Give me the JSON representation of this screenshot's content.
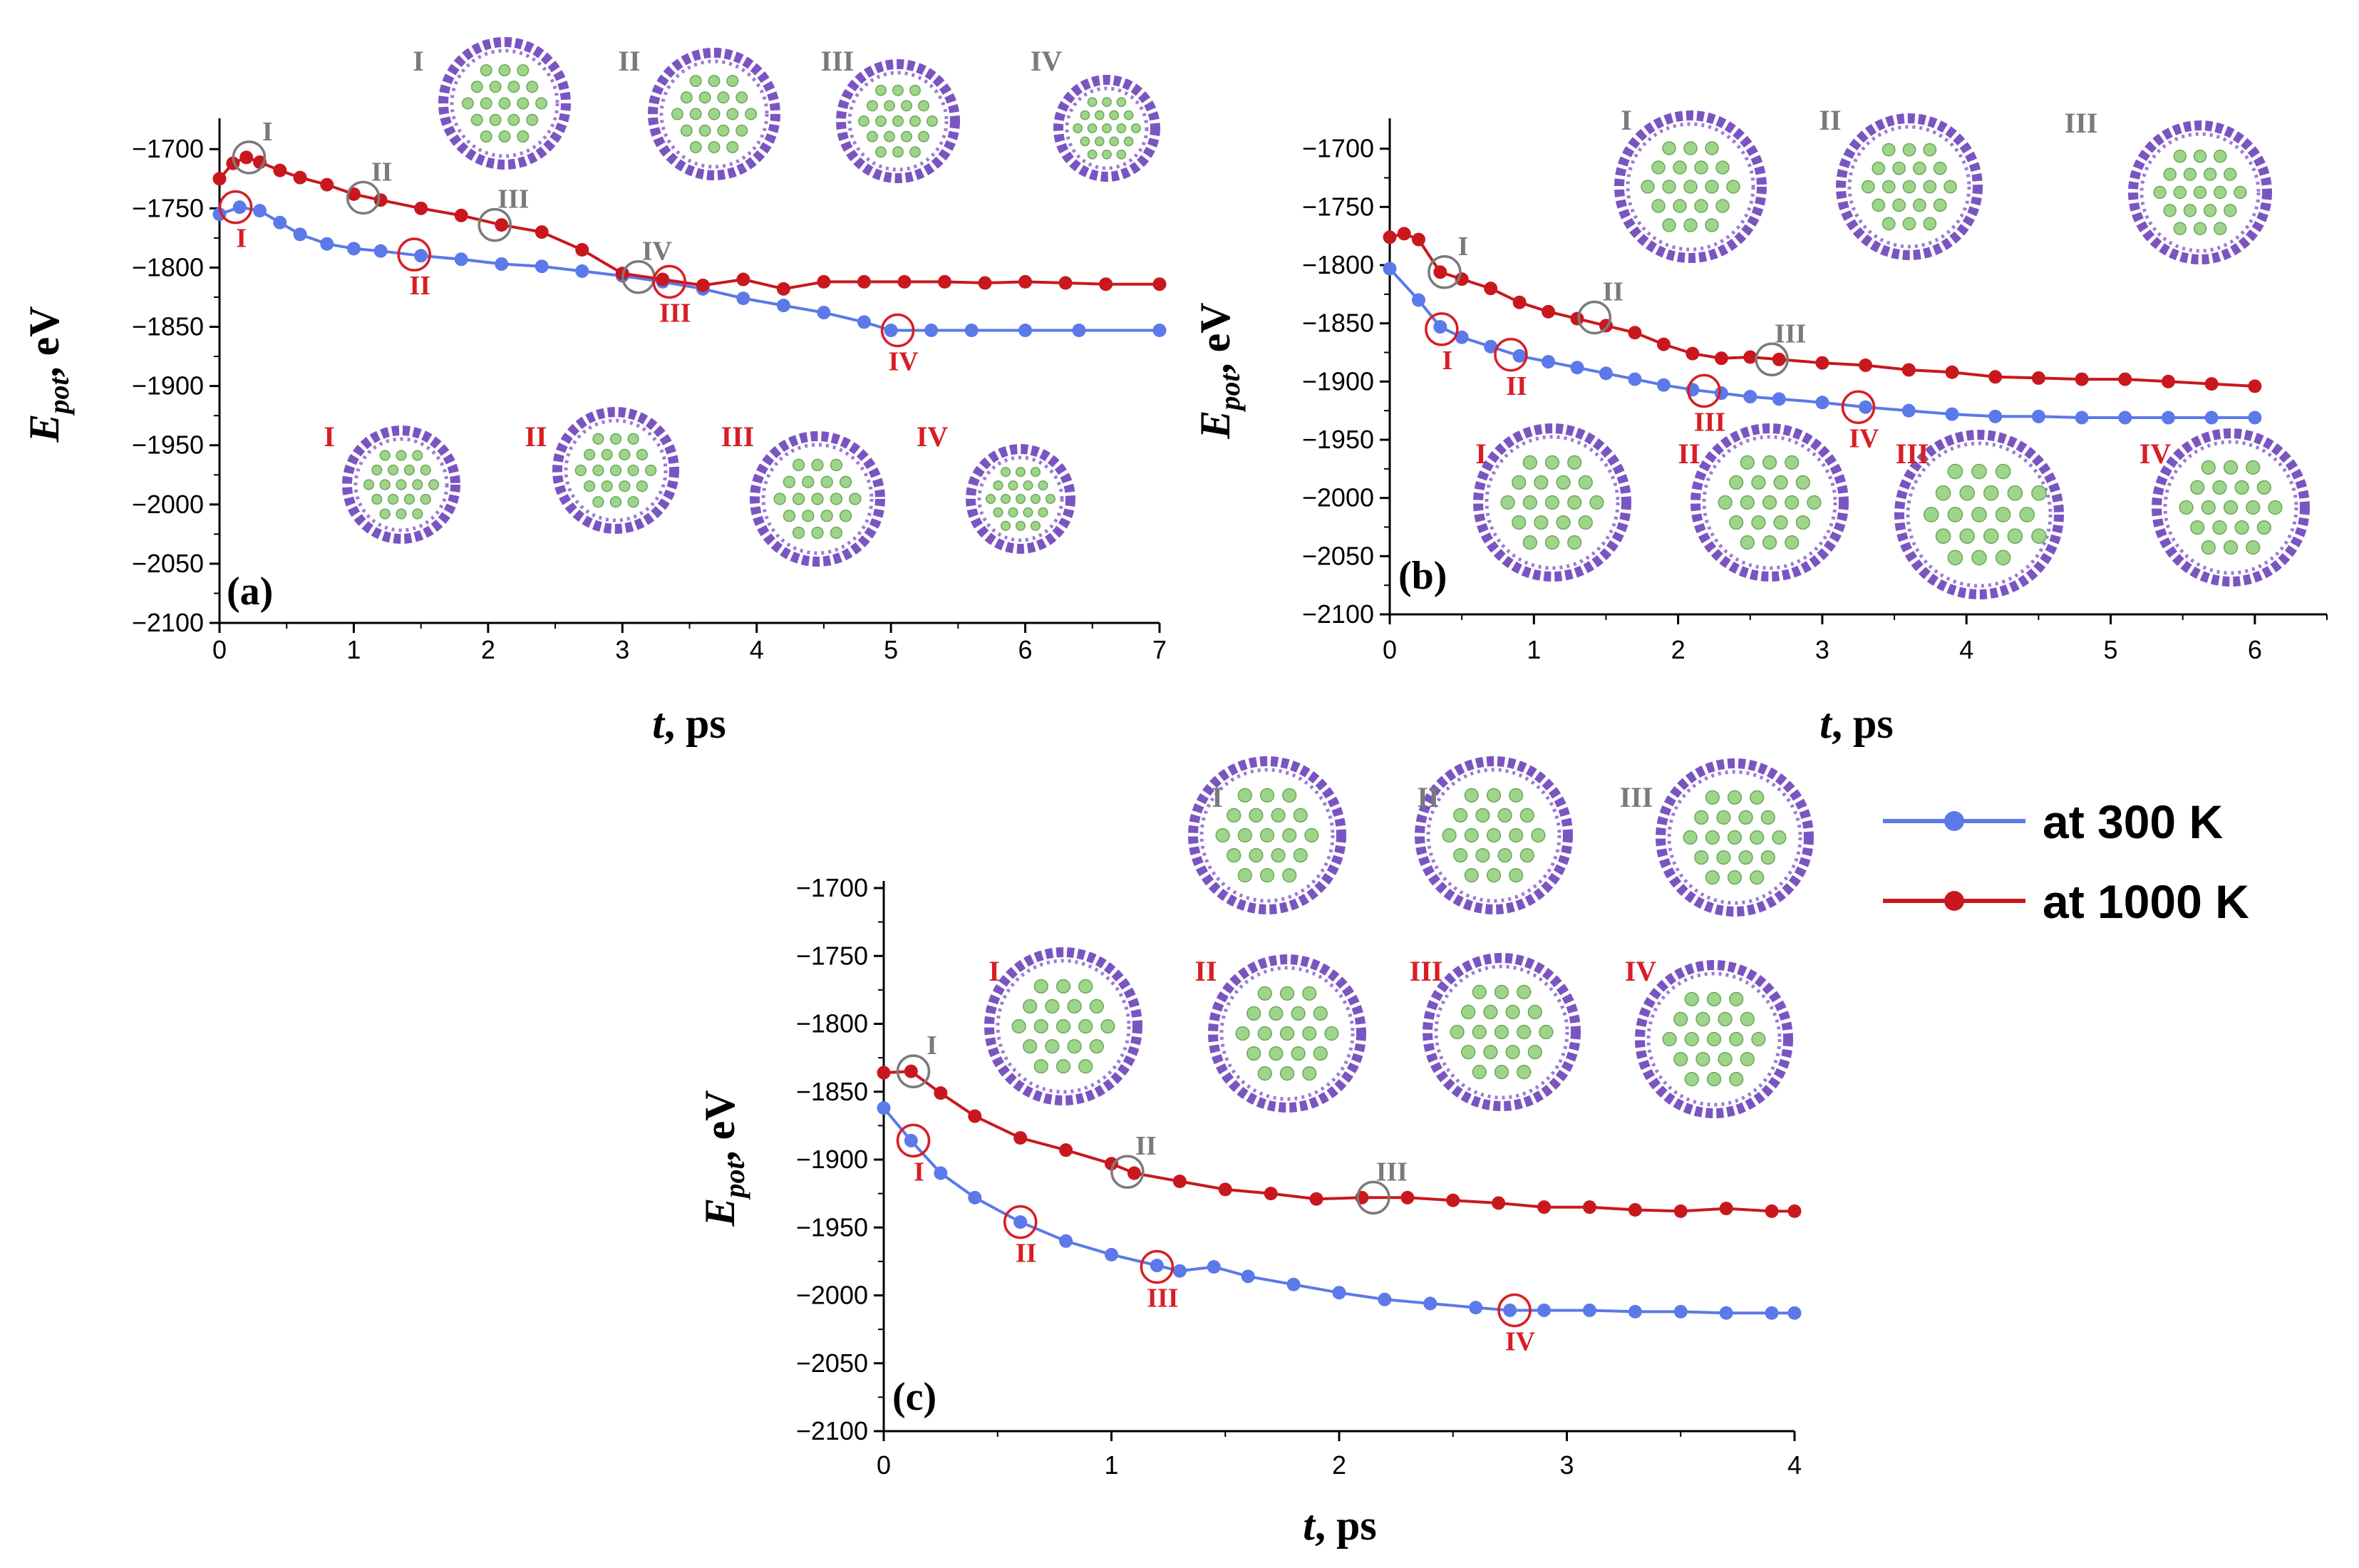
{
  "colors": {
    "series_300": "#5b79e8",
    "series_1000": "#c8181e",
    "marker_gray": "#7a7a7a",
    "marker_red": "#d81e24",
    "tube": "#7a55c2",
    "sodium": "#9ed58a"
  },
  "legend": {
    "items": [
      {
        "label": "at 300 K",
        "color": "#5b79e8"
      },
      {
        "label": "at 1000 K",
        "color": "#c8181e"
      }
    ]
  },
  "chart_data": [
    {
      "type": "line",
      "panel_label": "(a)",
      "xlabel_italic": "t",
      "xlabel_rest": ", ps",
      "ylabel_main": "E",
      "ylabel_sub": "pot",
      "ylabel_rest": ", eV",
      "xlim": [
        0,
        7
      ],
      "ylim": [
        -2100,
        -1680
      ],
      "xticks": [
        "0",
        "1",
        "2",
        "3",
        "4",
        "5",
        "6",
        "7"
      ],
      "yticks": [
        "-1700",
        "-1750",
        "-1800",
        "-1850",
        "-1900",
        "-1950",
        "-2000",
        "-2050",
        "-2100"
      ],
      "series": [
        {
          "key": "300K",
          "color": "#5b79e8",
          "x": [
            0,
            0.15,
            0.3,
            0.45,
            0.6,
            0.8,
            1.0,
            1.2,
            1.5,
            1.8,
            2.1,
            2.4,
            2.7,
            3.0,
            3.3,
            3.6,
            3.9,
            4.2,
            4.5,
            4.8,
            5.0,
            5.3,
            5.6,
            6.0,
            6.4,
            7.0
          ],
          "y": [
            -1755,
            -1749,
            -1752,
            -1762,
            -1772,
            -1780,
            -1784,
            -1786,
            -1790,
            -1793,
            -1797,
            -1799,
            -1803,
            -1807,
            -1812,
            -1818,
            -1826,
            -1832,
            -1838,
            -1846,
            -1853,
            -1853,
            -1853,
            -1853,
            -1853,
            -1853
          ]
        },
        {
          "key": "1000K",
          "color": "#c8181e",
          "x": [
            0,
            0.1,
            0.2,
            0.3,
            0.45,
            0.6,
            0.8,
            1.0,
            1.2,
            1.5,
            1.8,
            2.1,
            2.4,
            2.7,
            3.0,
            3.3,
            3.6,
            3.9,
            4.2,
            4.5,
            4.8,
            5.1,
            5.4,
            5.7,
            6.0,
            6.3,
            6.6,
            7.0
          ],
          "y": [
            -1725,
            -1712,
            -1707,
            -1711,
            -1718,
            -1724,
            -1730,
            -1738,
            -1743,
            -1750,
            -1756,
            -1764,
            -1770,
            -1785,
            -1805,
            -1810,
            -1815,
            -1810,
            -1818,
            -1812,
            -1812,
            -1812,
            -1812,
            -1813,
            -1812,
            -1813,
            -1814,
            -1814
          ]
        }
      ],
      "markers": [
        {
          "label": "I",
          "tone": "gray",
          "x": 0.22,
          "y": -1707
        },
        {
          "label": "II",
          "tone": "gray",
          "x": 1.07,
          "y": -1741
        },
        {
          "label": "III",
          "tone": "gray",
          "x": 2.05,
          "y": -1764
        },
        {
          "label": "IV",
          "tone": "gray",
          "x": 3.12,
          "y": -1808
        },
        {
          "label": "I",
          "tone": "red",
          "x": 0.12,
          "y": -1749
        },
        {
          "label": "II",
          "tone": "red",
          "x": 1.45,
          "y": -1789
        },
        {
          "label": "III",
          "tone": "red",
          "x": 3.35,
          "y": -1812
        },
        {
          "label": "IV",
          "tone": "red",
          "x": 5.05,
          "y": -1853
        }
      ],
      "snapshots": {
        "top": [
          "I",
          "II",
          "III",
          "IV"
        ],
        "bottom": [
          "I",
          "II",
          "III",
          "IV"
        ]
      }
    },
    {
      "type": "line",
      "panel_label": "(b)",
      "xlabel_italic": "t",
      "xlabel_rest": ", ps",
      "ylabel_main": "E",
      "ylabel_sub": "pot",
      "ylabel_rest": ", eV",
      "xlim": [
        0,
        6.5
      ],
      "ylim": [
        -2100,
        -1680
      ],
      "xticks": [
        "0",
        "1",
        "2",
        "3",
        "4",
        "5",
        "6"
      ],
      "yticks": [
        "-1700",
        "-1750",
        "-1800",
        "-1850",
        "-1900",
        "-1950",
        "-2000",
        "-2050",
        "-2100"
      ],
      "series": [
        {
          "key": "300K",
          "color": "#5b79e8",
          "x": [
            0,
            0.2,
            0.35,
            0.5,
            0.7,
            0.9,
            1.1,
            1.3,
            1.5,
            1.7,
            1.9,
            2.1,
            2.3,
            2.5,
            2.7,
            3.0,
            3.3,
            3.6,
            3.9,
            4.2,
            4.5,
            4.8,
            5.1,
            5.4,
            5.7,
            6.0
          ],
          "y": [
            -1803,
            -1830,
            -1853,
            -1862,
            -1870,
            -1878,
            -1883,
            -1888,
            -1893,
            -1898,
            -1903,
            -1907,
            -1910,
            -1913,
            -1915,
            -1918,
            -1922,
            -1925,
            -1928,
            -1930,
            -1930,
            -1931,
            -1931,
            -1931,
            -1931,
            -1931
          ]
        },
        {
          "key": "1000K",
          "color": "#c8181e",
          "x": [
            0,
            0.1,
            0.2,
            0.35,
            0.5,
            0.7,
            0.9,
            1.1,
            1.3,
            1.5,
            1.7,
            1.9,
            2.1,
            2.3,
            2.5,
            2.7,
            3.0,
            3.3,
            3.6,
            3.9,
            4.2,
            4.5,
            4.8,
            5.1,
            5.4,
            5.7,
            6.0
          ],
          "y": [
            -1776,
            -1773,
            -1778,
            -1806,
            -1812,
            -1820,
            -1832,
            -1840,
            -1846,
            -1852,
            -1858,
            -1868,
            -1876,
            -1880,
            -1879,
            -1881,
            -1884,
            -1886,
            -1890,
            -1892,
            -1896,
            -1897,
            -1898,
            -1898,
            -1900,
            -1902,
            -1904
          ]
        }
      ],
      "markers": [
        {
          "label": "I",
          "tone": "gray",
          "x": 0.38,
          "y": -1806
        },
        {
          "label": "II",
          "tone": "gray",
          "x": 1.42,
          "y": -1845
        },
        {
          "label": "III",
          "tone": "gray",
          "x": 2.65,
          "y": -1881
        },
        {
          "label": "I",
          "tone": "red",
          "x": 0.36,
          "y": -1855
        },
        {
          "label": "II",
          "tone": "red",
          "x": 0.84,
          "y": -1877
        },
        {
          "label": "III",
          "tone": "red",
          "x": 2.18,
          "y": -1908
        },
        {
          "label": "IV",
          "tone": "red",
          "x": 3.25,
          "y": -1922
        }
      ],
      "snapshots": {
        "top": [
          "I",
          "II",
          "III"
        ],
        "bottom": [
          "I",
          "II",
          "III",
          "IV"
        ]
      }
    },
    {
      "type": "line",
      "panel_label": "(c)",
      "xlabel_italic": "t",
      "xlabel_rest": ", ps",
      "ylabel_main": "E",
      "ylabel_sub": "pot",
      "ylabel_rest": ", eV",
      "xlim": [
        0,
        4
      ],
      "ylim": [
        -2100,
        -1700
      ],
      "xticks": [
        "0",
        "1",
        "2",
        "3",
        "4"
      ],
      "yticks": [
        "-1700",
        "-1750",
        "-1800",
        "-1850",
        "-1900",
        "-1950",
        "-2000",
        "-2050",
        "-2100"
      ],
      "series": [
        {
          "key": "300K",
          "color": "#5b79e8",
          "x": [
            0,
            0.12,
            0.25,
            0.4,
            0.6,
            0.8,
            1.0,
            1.2,
            1.3,
            1.45,
            1.6,
            1.8,
            2.0,
            2.2,
            2.4,
            2.6,
            2.75,
            2.9,
            3.1,
            3.3,
            3.5,
            3.7,
            3.9,
            4.0
          ],
          "y": [
            -1862,
            -1886,
            -1910,
            -1928,
            -1946,
            -1960,
            -1970,
            -1978,
            -1982,
            -1979,
            -1986,
            -1992,
            -1998,
            -2003,
            -2006,
            -2009,
            -2011,
            -2011,
            -2011,
            -2012,
            -2012,
            -2013,
            -2013,
            -2013
          ]
        },
        {
          "key": "1000K",
          "color": "#c8181e",
          "x": [
            0,
            0.12,
            0.25,
            0.4,
            0.6,
            0.8,
            1.0,
            1.1,
            1.3,
            1.5,
            1.7,
            1.9,
            2.1,
            2.3,
            2.5,
            2.7,
            2.9,
            3.1,
            3.3,
            3.5,
            3.7,
            3.9,
            4.0
          ],
          "y": [
            -1836,
            -1835,
            -1851,
            -1868,
            -1884,
            -1893,
            -1903,
            -1910,
            -1916,
            -1922,
            -1925,
            -1929,
            -1928,
            -1928,
            -1930,
            -1932,
            -1935,
            -1935,
            -1937,
            -1938,
            -1936,
            -1938,
            -1938
          ]
        }
      ],
      "markers": [
        {
          "label": "I",
          "tone": "gray",
          "x": 0.13,
          "y": -1835
        },
        {
          "label": "II",
          "tone": "gray",
          "x": 1.07,
          "y": -1909
        },
        {
          "label": "III",
          "tone": "gray",
          "x": 2.15,
          "y": -1928
        },
        {
          "label": "I",
          "tone": "red",
          "x": 0.13,
          "y": -1886
        },
        {
          "label": "II",
          "tone": "red",
          "x": 0.6,
          "y": -1946
        },
        {
          "label": "III",
          "tone": "red",
          "x": 1.2,
          "y": -1979
        },
        {
          "label": "IV",
          "tone": "red",
          "x": 2.77,
          "y": -2011
        }
      ],
      "snapshots": {
        "top": [
          "I",
          "II",
          "III"
        ],
        "bottom": [
          "I",
          "II",
          "III",
          "IV"
        ]
      }
    }
  ]
}
